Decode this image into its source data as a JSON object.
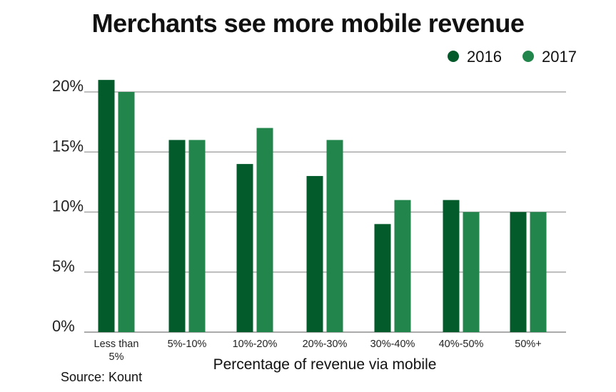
{
  "chart_data": {
    "type": "bar",
    "title": "Merchants see more mobile revenue",
    "xlabel": "Percentage of revenue via mobile",
    "ylabel": "",
    "categories": [
      "Less than 5%",
      "5%-10%",
      "10%-20%",
      "20%-30%",
      "30%-40%",
      "40%-50%",
      "50%+"
    ],
    "series": [
      {
        "name": "2016",
        "color": "#035a2b",
        "values": [
          21,
          16,
          14,
          13,
          9,
          11,
          10
        ]
      },
      {
        "name": "2017",
        "color": "#22864c",
        "values": [
          20,
          16,
          17,
          16,
          11,
          10,
          10
        ]
      }
    ],
    "ylim": [
      0,
      20
    ],
    "yticks": [
      0,
      5,
      10,
      15,
      20
    ],
    "ytick_labels": [
      "0%",
      "5%",
      "10%",
      "15%",
      "20%"
    ],
    "grid": true,
    "legend": "top-right",
    "source": "Source: Kount"
  }
}
